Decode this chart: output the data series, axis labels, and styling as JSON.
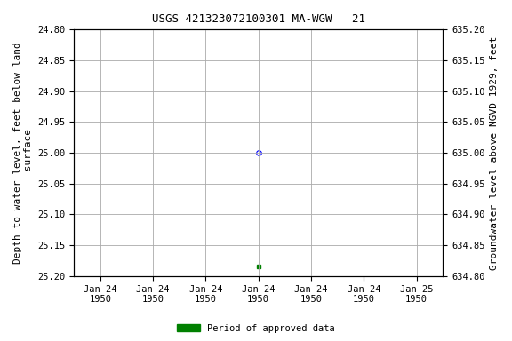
{
  "title": "USGS 421323072100301 MA-WGW   21",
  "ylabel_left": "Depth to water level, feet below land\n surface",
  "ylabel_right": "Groundwater level above NGVD 1929, feet",
  "ylim_left": [
    25.2,
    24.8
  ],
  "ylim_right": [
    634.8,
    635.2
  ],
  "yticks_left": [
    24.8,
    24.85,
    24.9,
    24.95,
    25.0,
    25.05,
    25.1,
    25.15,
    25.2
  ],
  "yticks_right": [
    634.8,
    634.85,
    634.9,
    634.95,
    635.0,
    635.05,
    635.1,
    635.15,
    635.2
  ],
  "data_unapproved_value": 25.0,
  "data_approved_value": 25.185,
  "legend_label": "Period of approved data",
  "legend_color": "#008000",
  "unapproved_color": "#0000ff",
  "approved_color": "#008000",
  "background_color": "#ffffff",
  "grid_color": "#aaaaaa",
  "tick_label_fontsize": 7.5,
  "title_fontsize": 9,
  "axis_label_fontsize": 8,
  "num_ticks": 7,
  "xtick_labels": [
    "Jan 24\n1950",
    "Jan 24\n1950",
    "Jan 24\n1950",
    "Jan 24\n1950",
    "Jan 24\n1950",
    "Jan 24\n1950",
    "Jan 25\n1950"
  ]
}
